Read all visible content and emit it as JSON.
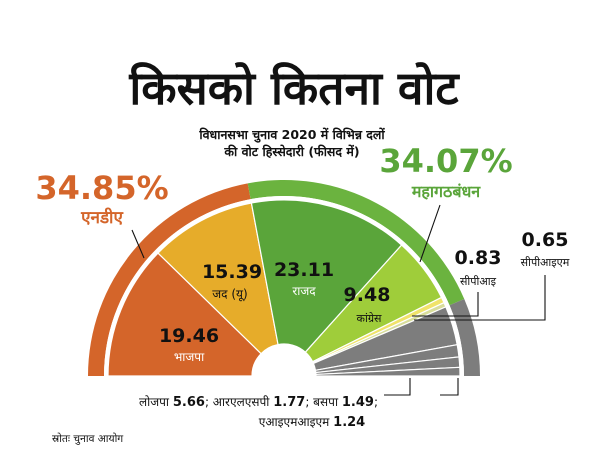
{
  "title": "किसको कितना वोट",
  "subtitle_line1": "विधानसभा चुनाव 2020 में विभिन्न दलों",
  "subtitle_line2": "की वोट हिस्सेदारी (फीसद में)",
  "source": "स्रोतः चुनाव आयोग",
  "colors": {
    "nda": "#d4652a",
    "bjp": "#d4652a",
    "jdu": "#e6ac2a",
    "mahagathbandhan": "#6bb33f",
    "rjd": "#5aa53a",
    "congress": "#9fcd3a",
    "cpi": "#f0e36a",
    "cpim": "#d8dd9b",
    "others": "#7d7d7d"
  },
  "chart_data": {
    "type": "pie",
    "title": "किसको कितना वोट",
    "subtitle": "विधानसभा चुनाव 2020 में विभिन्न दलों की वोट हिस्सेदारी (फीसद में)",
    "alliances": [
      {
        "name": "एनडीए",
        "value": 34.85,
        "value_text": "34.85%"
      },
      {
        "name": "महागठबंधन",
        "value": 34.07,
        "value_text": "34.07%"
      }
    ],
    "slices": [
      {
        "name": "भाजपा",
        "value": 19.46,
        "color": "#d4652a"
      },
      {
        "name": "जद (यू)",
        "value": 15.39,
        "color": "#e6ac2a"
      },
      {
        "name": "राजद",
        "value": 23.11,
        "color": "#5aa53a"
      },
      {
        "name": "कांग्रेस",
        "value": 9.48,
        "color": "#9fcd3a"
      },
      {
        "name": "सीपीआइ",
        "value": 0.83,
        "color": "#f0e36a"
      },
      {
        "name": "सीपीआइएम",
        "value": 0.65,
        "color": "#d8dd9b"
      },
      {
        "name": "लोजपा",
        "value": 5.66,
        "color": "#7d7d7d"
      },
      {
        "name": "आरएलएसपी",
        "value": 1.77,
        "color": "#7d7d7d"
      },
      {
        "name": "बसपा",
        "value": 1.49,
        "color": "#7d7d7d"
      },
      {
        "name": "एआइएमआइएम",
        "value": 1.24,
        "color": "#7d7d7d"
      }
    ],
    "labels": {
      "bjp_value": "19.46",
      "bjp_name": "भाजपा",
      "jdu_value": "15.39",
      "jdu_name": "जद (यू)",
      "rjd_value": "23.11",
      "rjd_name": "राजद",
      "congress_value": "9.48",
      "congress_name": "कांग्रेस",
      "cpi_value": "0.83",
      "cpi_name": "सीपीआइ",
      "cpim_value": "0.65",
      "cpim_name": "सीपीआइएम",
      "bottom_line1_a": "लोजपा ",
      "bottom_line1_b": "5.66",
      "bottom_line1_c": "; आरएलएसपी ",
      "bottom_line1_d": "1.77",
      "bottom_line1_e": "; बसपा ",
      "bottom_line1_f": "1.49",
      "bottom_line1_g": ";",
      "bottom_line2_a": "एआइएमआइएम ",
      "bottom_line2_b": "1.24"
    }
  }
}
